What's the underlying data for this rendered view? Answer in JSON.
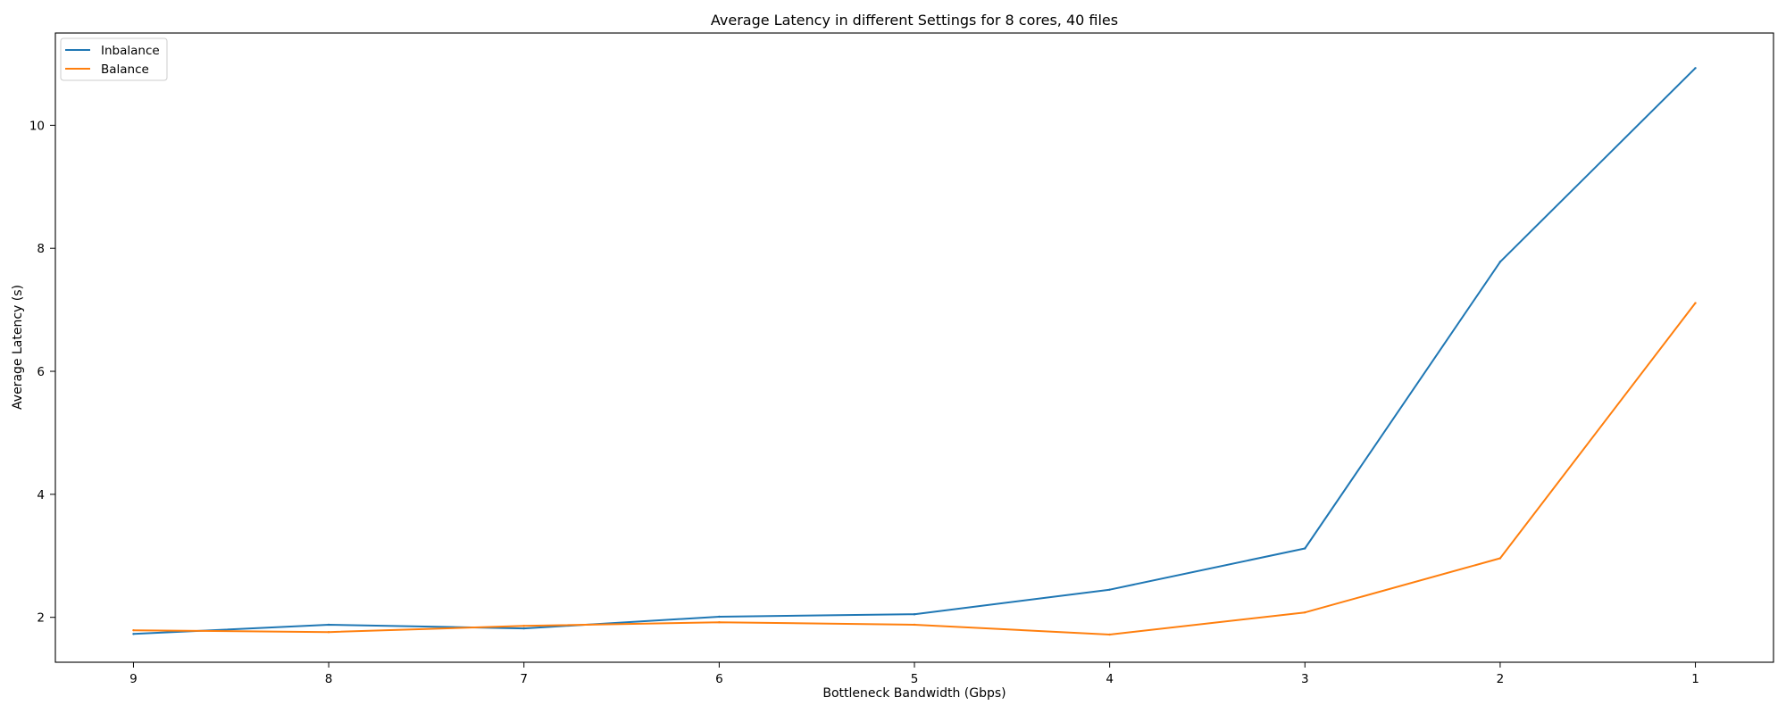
{
  "chart_data": {
    "type": "line",
    "title": "Average Latency in different Settings for 8 cores, 40 files",
    "xlabel": "Bottleneck Bandwidth (Gbps)",
    "ylabel": "Average Latency (s)",
    "x": [
      9,
      8,
      7,
      6,
      5,
      4,
      3,
      2,
      1
    ],
    "x_reversed": true,
    "xlim": [
      9.4,
      0.6
    ],
    "ylim": [
      1.27,
      11.5
    ],
    "x_ticks": [
      9,
      8,
      7,
      6,
      5,
      4,
      3,
      2,
      1
    ],
    "y_ticks": [
      2,
      4,
      6,
      8,
      10
    ],
    "grid": false,
    "legend_position": "top-left",
    "series": [
      {
        "name": "Inbalance",
        "color": "#1f77b4",
        "values": [
          1.73,
          1.88,
          1.82,
          2.01,
          2.05,
          2.45,
          3.12,
          7.78,
          10.93
        ]
      },
      {
        "name": "Balance",
        "color": "#ff7f0e",
        "values": [
          1.79,
          1.76,
          1.86,
          1.92,
          1.88,
          1.72,
          2.08,
          2.96,
          7.11
        ]
      }
    ]
  }
}
